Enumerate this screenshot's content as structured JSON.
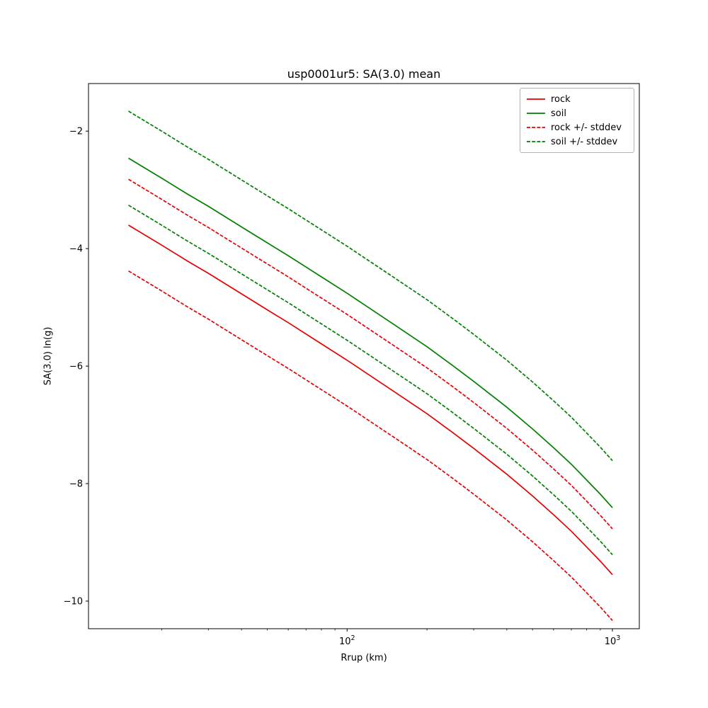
{
  "figure": {
    "title": "usp0001ur5: SA(3.0) mean",
    "xlabel": "Rrup (km)",
    "ylabel": "SA(3.0) ln(g)",
    "background": "#ffffff"
  },
  "chart_data": {
    "type": "line",
    "title": "usp0001ur5: SA(3.0) mean",
    "xlabel": "Rrup (km)",
    "ylabel": "SA(3.0) ln(g)",
    "x_scale": "log",
    "xlim": [
      10.6,
      1263
    ],
    "ylim": [
      -10.47,
      -1.19
    ],
    "grid": false,
    "legend_position": "upper right",
    "y_ticks": [
      -2,
      -4,
      -6,
      -8,
      -10
    ],
    "x_major_ticks": [
      {
        "value": 100,
        "exp": "2"
      },
      {
        "value": 1000,
        "exp": "3"
      }
    ],
    "x_minor_ticks": [
      20,
      30,
      40,
      50,
      60,
      70,
      80,
      90,
      200,
      300,
      400,
      500,
      600,
      700,
      800,
      900
    ],
    "x": [
      15,
      20,
      25,
      30,
      40,
      50,
      60,
      80,
      100,
      150,
      200,
      250,
      300,
      400,
      500,
      600,
      700,
      800,
      900,
      1000
    ],
    "series": [
      {
        "name": "rock",
        "label": "rock",
        "color": "#e60000",
        "dash": "none",
        "values": [
          -3.6,
          -3.94,
          -4.21,
          -4.42,
          -4.77,
          -5.04,
          -5.26,
          -5.62,
          -5.9,
          -6.43,
          -6.81,
          -7.13,
          -7.4,
          -7.84,
          -8.21,
          -8.53,
          -8.81,
          -9.08,
          -9.32,
          -9.55
        ]
      },
      {
        "name": "soil",
        "label": "soil",
        "color": "#008000",
        "dash": "none",
        "values": [
          -2.46,
          -2.8,
          -3.07,
          -3.28,
          -3.63,
          -3.9,
          -4.12,
          -4.48,
          -4.76,
          -5.29,
          -5.67,
          -5.99,
          -6.26,
          -6.7,
          -7.07,
          -7.39,
          -7.67,
          -7.94,
          -8.18,
          -8.41
        ]
      },
      {
        "name": "rock-plus-stddev",
        "label": "rock +/- stddev",
        "color": "#e60000",
        "dash": "5 2.2",
        "values": [
          -2.82,
          -3.16,
          -3.43,
          -3.64,
          -3.99,
          -4.26,
          -4.48,
          -4.84,
          -5.12,
          -5.65,
          -6.03,
          -6.35,
          -6.62,
          -7.06,
          -7.43,
          -7.75,
          -8.03,
          -8.3,
          -8.54,
          -8.77
        ]
      },
      {
        "name": "rock-minus-stddev",
        "label": "rock +/- stddev",
        "color": "#e60000",
        "dash": "5 2.2",
        "values": [
          -4.38,
          -4.72,
          -4.99,
          -5.2,
          -5.55,
          -5.82,
          -6.04,
          -6.4,
          -6.68,
          -7.21,
          -7.59,
          -7.91,
          -8.18,
          -8.62,
          -8.99,
          -9.31,
          -9.59,
          -9.86,
          -10.1,
          -10.33
        ]
      },
      {
        "name": "soil-plus-stddev",
        "label": "soil +/- stddev",
        "color": "#008000",
        "dash": "5 2.2",
        "values": [
          -1.66,
          -2.0,
          -2.27,
          -2.48,
          -2.83,
          -3.1,
          -3.32,
          -3.68,
          -3.96,
          -4.49,
          -4.87,
          -5.19,
          -5.46,
          -5.9,
          -6.27,
          -6.59,
          -6.87,
          -7.14,
          -7.38,
          -7.61
        ]
      },
      {
        "name": "soil-minus-stddev",
        "label": "soil +/- stddev",
        "color": "#008000",
        "dash": "5 2.2",
        "values": [
          -3.26,
          -3.6,
          -3.87,
          -4.08,
          -4.43,
          -4.7,
          -4.92,
          -5.28,
          -5.56,
          -6.09,
          -6.47,
          -6.79,
          -7.06,
          -7.5,
          -7.87,
          -8.19,
          -8.47,
          -8.74,
          -8.98,
          -9.21
        ]
      }
    ],
    "legend": [
      {
        "label": "rock",
        "color": "#e60000",
        "dash": "none"
      },
      {
        "label": "soil",
        "color": "#008000",
        "dash": "none"
      },
      {
        "label": "rock +/- stddev",
        "color": "#e60000",
        "dash": "5 2.2"
      },
      {
        "label": "soil +/- stddev",
        "color": "#008000",
        "dash": "5 2.2"
      }
    ]
  }
}
